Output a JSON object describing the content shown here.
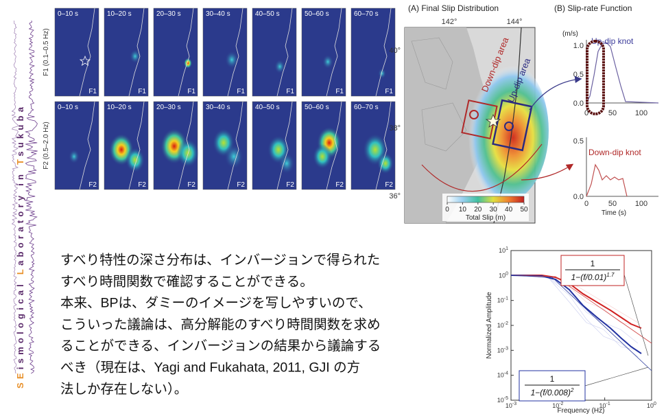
{
  "sidebar": {
    "parts": [
      "SE",
      "ismological ",
      "L",
      "aboratory in ",
      "T",
      "sukuba"
    ]
  },
  "snapshots": {
    "rows": [
      {
        "label": "F1 (0.1–0.5 Hz)",
        "tag": "F1"
      },
      {
        "label": "F2 (0.5–2.0 Hz)",
        "tag": "F2"
      }
    ],
    "windows": [
      "0–10 s",
      "10–20 s",
      "20–30 s",
      "30–40 s",
      "40–50 s",
      "50–60 s",
      "60–70 s"
    ]
  },
  "slip_map": {
    "title": "(A) Final Slip Distribution",
    "lon_labels": [
      "142°",
      "144°"
    ],
    "lat_labels": [
      "40°",
      "38°",
      "36°"
    ],
    "down_label": "Down-dip area",
    "up_label": "Up-dip area",
    "colorbar_ticks": [
      "0",
      "10",
      "20",
      "30",
      "40",
      "50"
    ],
    "colorbar_label": "Total Slip (m)"
  },
  "slip_rate": {
    "title": "(B) Slip-rate Function",
    "unit": "(m/s)",
    "top": {
      "label": "Up-dip knot",
      "yticks": [
        "1.0",
        "0.5",
        "0.0"
      ],
      "xticks": [
        "0",
        "50",
        "100"
      ]
    },
    "bottom": {
      "label": "Down-dip knot",
      "yticks": [
        "0.5",
        "0.0"
      ],
      "xticks": [
        "0",
        "50",
        "100"
      ]
    },
    "xlabel": "Time (s)"
  },
  "body": {
    "lines": [
      "すべり特性の深さ分布は、インバージョンで得られた",
      "すべり時間関数で確認することができる。",
      "本来、BPは、ダミーのイメージを写しやすいので、",
      "こういった議論は、高分解能のすべり時間関数を求め",
      "ることができる、インバージョンの結果から議論する",
      "べき（現在は、Yagi and Fukahata, 2011, GJI の方",
      "法しか存在しない）。"
    ]
  },
  "spectrum": {
    "ylabel": "Normalized Amplitude",
    "xlabel": "Frequency (Hz)",
    "yticks": [
      {
        "base": "10",
        "exp": "1"
      },
      {
        "base": "10",
        "exp": "0"
      },
      {
        "base": "10",
        "exp": "-1"
      },
      {
        "base": "10",
        "exp": "-2"
      },
      {
        "base": "10",
        "exp": "-3"
      },
      {
        "base": "10",
        "exp": "-4"
      },
      {
        "base": "10",
        "exp": "-5"
      }
    ],
    "xticks": [
      {
        "base": "10",
        "exp": "-3"
      },
      {
        "base": "10",
        "exp": "-2"
      },
      {
        "base": "10",
        "exp": "-1"
      },
      {
        "base": "10",
        "exp": "0"
      }
    ],
    "red_formula": {
      "num": "1",
      "den": "1−(f/0.01)",
      "exp": "1.7"
    },
    "blue_formula": {
      "num": "1",
      "den": "1−(f/0.008)",
      "exp": "2"
    }
  }
}
